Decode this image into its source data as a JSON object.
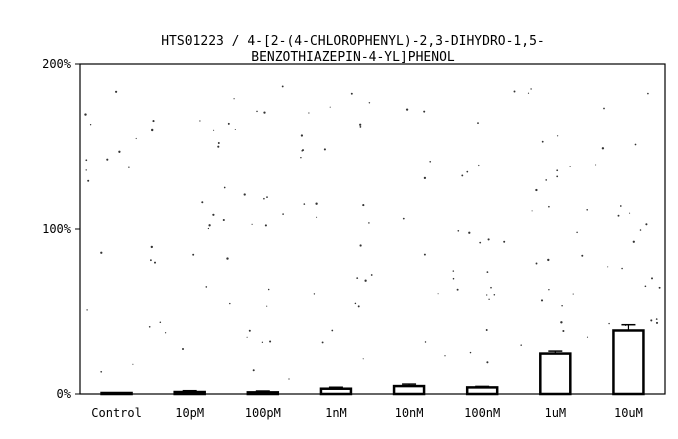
{
  "chart_data": {
    "type": "bar",
    "title_lines": [
      "HTS01223 / 4-[2-(4-CHLOROPHENYL)-2,3-DIHYDRO-1,5-",
      "BENZOTHIAZEPIN-4-YL]PHENOL"
    ],
    "xlabel": "",
    "ylabel": "",
    "ylim": [
      0,
      200
    ],
    "yticks": [
      0,
      100,
      200
    ],
    "ytick_labels": [
      "0%",
      "100%",
      "200%"
    ],
    "categories": [
      "Control",
      "10pM",
      "100pM",
      "1nM",
      "10nM",
      "100nM",
      "1uM",
      "10uM"
    ],
    "values": [
      0.3,
      1.2,
      1.0,
      3.2,
      4.8,
      4.0,
      24.5,
      38.5
    ],
    "errors": [
      0.3,
      0.8,
      0.8,
      0.9,
      1.2,
      0.6,
      1.5,
      3.5
    ],
    "grid": false,
    "bar_fill": "#ffffff",
    "bar_stroke": "#000000"
  }
}
